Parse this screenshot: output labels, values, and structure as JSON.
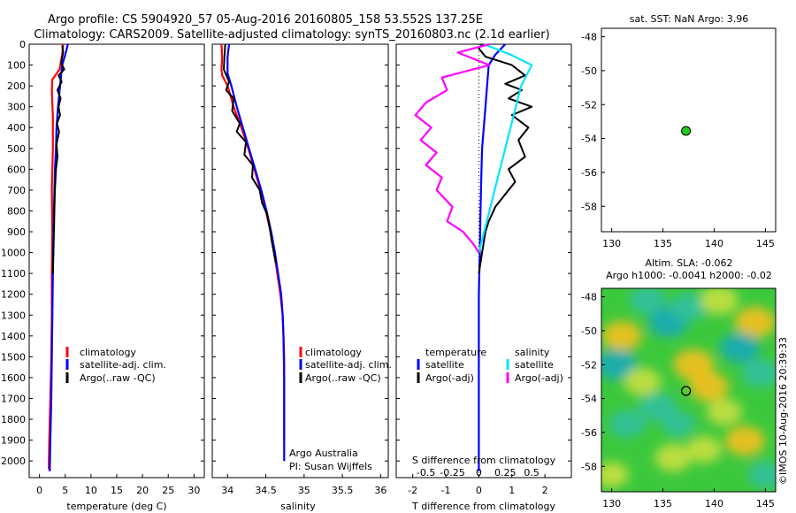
{
  "header": {
    "line1": "Argo profile: CS 5904920_57 05-Aug-2016 20160805_158 53.552S 137.25E",
    "line2": "Climatology: CARS2009. Satellite-adjusted climatology: synTS_20160803.nc (2.1d earlier)"
  },
  "colors": {
    "climatology": "#ff0000",
    "satellite": "#0000ff",
    "argo": "#000000",
    "sal_satellite": "#00e5ff",
    "sal_argo": "#ff00ff",
    "argo_marker": "#22cc22"
  },
  "credit": "©IMOS 10-Aug-2016 20:39:33",
  "chart_data": [
    {
      "type": "line",
      "id": "temperature",
      "xlabel": "temperature (deg C)",
      "ylabel": "",
      "xlim": [
        -2,
        32
      ],
      "ylim": [
        2080,
        0
      ],
      "xticks": [
        0,
        5,
        10,
        15,
        20,
        25,
        30
      ],
      "yticks": [
        0,
        100,
        200,
        300,
        400,
        500,
        600,
        700,
        800,
        900,
        1000,
        1100,
        1200,
        1300,
        1400,
        1500,
        1600,
        1700,
        1800,
        1900,
        2000
      ],
      "legend": [
        "climatology",
        "satellite-adj. clim.",
        "Argo(..raw -QC)"
      ],
      "series": [
        {
          "name": "climatology",
          "color": "#ff0000",
          "x": [
            4.6,
            4.4,
            3.9,
            2.5,
            2.4,
            2.6,
            2.6,
            2.4,
            2.5,
            2.4,
            2.4,
            2.3,
            2.2,
            2.1,
            2.0,
            1.9,
            1.8
          ],
          "y": [
            0,
            50,
            120,
            170,
            220,
            350,
            500,
            700,
            900,
            1100,
            1300,
            1500,
            1600,
            1700,
            1800,
            1900,
            2040
          ]
        },
        {
          "name": "satellite-adj. clim.",
          "color": "#0000ff",
          "x": [
            5.5,
            5.0,
            4.4,
            4.0,
            3.6,
            3.3,
            3.2,
            3.0,
            2.9,
            2.8,
            2.7,
            2.6,
            2.5,
            2.4,
            2.3,
            2.2,
            2.1,
            2.0
          ],
          "y": [
            0,
            50,
            100,
            200,
            300,
            400,
            500,
            600,
            700,
            800,
            900,
            1100,
            1300,
            1500,
            1700,
            1800,
            1900,
            2050
          ]
        },
        {
          "name": "Argo(..raw -QC)",
          "color": "#000000",
          "x": [
            4.4,
            4.6,
            4.2,
            4.8,
            3.7,
            4.3,
            3.5,
            4.1,
            3.7,
            4.0,
            3.4,
            3.8,
            3.3,
            3.5,
            3.2,
            3.0,
            2.9,
            2.8,
            2.7,
            2.6
          ],
          "y": [
            5,
            40,
            90,
            120,
            150,
            180,
            220,
            260,
            300,
            340,
            380,
            420,
            480,
            540,
            600,
            700,
            800,
            900,
            1000,
            1100
          ]
        }
      ]
    },
    {
      "type": "line",
      "id": "salinity",
      "xlabel": "salinity",
      "ylabel": "",
      "xlim": [
        33.8,
        36.1
      ],
      "ylim": [
        2080,
        0
      ],
      "xticks": [
        34,
        34.5,
        35,
        35.5,
        36
      ],
      "legend": [
        "climatology",
        "satellite-adj. clim.",
        "Argo(..raw -QC)"
      ],
      "annotations": [
        "Argo Australia",
        "PI: Susan Wijffels"
      ],
      "series": [
        {
          "name": "climatology",
          "color": "#ff0000",
          "x": [
            33.92,
            33.93,
            33.92,
            33.93,
            34.0,
            34.08,
            34.18,
            34.27,
            34.35,
            34.43,
            34.5,
            34.56,
            34.61,
            34.65,
            34.69,
            34.72,
            34.73,
            34.74,
            34.74,
            34.74
          ],
          "y": [
            0,
            60,
            120,
            150,
            200,
            300,
            400,
            500,
            600,
            700,
            800,
            900,
            1000,
            1100,
            1200,
            1300,
            1400,
            1500,
            1700,
            1900
          ]
        },
        {
          "name": "satellite-adj. clim.",
          "color": "#0000ff",
          "x": [
            34.02,
            34.0,
            34.0,
            34.05,
            34.12,
            34.2,
            34.28,
            34.36,
            34.44,
            34.51,
            34.57,
            34.62,
            34.66,
            34.7,
            34.72,
            34.73,
            34.74,
            34.74
          ],
          "y": [
            0,
            60,
            140,
            200,
            300,
            400,
            500,
            600,
            700,
            800,
            900,
            1000,
            1100,
            1200,
            1300,
            1400,
            1600,
            2000
          ]
        },
        {
          "name": "Argo(..raw -QC)",
          "color": "#000000",
          "x": [
            33.97,
            33.96,
            33.95,
            34.02,
            33.98,
            34.08,
            34.06,
            34.16,
            34.12,
            34.24,
            34.22,
            34.33,
            34.32,
            34.42,
            34.45,
            34.52,
            34.55,
            34.58,
            34.63
          ],
          "y": [
            0,
            60,
            120,
            180,
            220,
            260,
            320,
            380,
            420,
            470,
            530,
            580,
            640,
            700,
            760,
            820,
            880,
            950,
            1050
          ]
        }
      ]
    },
    {
      "type": "line",
      "id": "difference",
      "xlabel": "T difference from climatology",
      "xlabel_top": "S difference from climatology",
      "xlim": [
        -2.5,
        2.8
      ],
      "ylim": [
        2080,
        0
      ],
      "xticks": [
        -2,
        -1,
        0,
        1,
        2
      ],
      "sticks": [
        -0.5,
        -0.25,
        0,
        0.25,
        0.5
      ],
      "legend_temperature": [
        "temperature",
        "satellite",
        "Argo(-adj)"
      ],
      "legend_salinity": [
        "salinity",
        "satellite",
        "Argo(-adj)"
      ],
      "series": [
        {
          "name": "satellite",
          "group": "temperature",
          "color": "#0000ff",
          "x": [
            0.8,
            0.5,
            0.3,
            0.25,
            0.2,
            0.15,
            0.1,
            0.08,
            0.05,
            0.03,
            0.0,
            0.0
          ],
          "y": [
            0,
            50,
            100,
            200,
            300,
            400,
            500,
            600,
            800,
            1000,
            1200,
            2050
          ]
        },
        {
          "name": "Argo(-adj)",
          "group": "temperature",
          "color": "#000000",
          "x": [
            0.1,
            0.0,
            0.2,
            1.0,
            1.4,
            0.8,
            1.3,
            0.9,
            1.6,
            1.0,
            1.5,
            1.2,
            1.4,
            0.9,
            1.1,
            0.8,
            0.5,
            0.3,
            0.2,
            0.1,
            0.0
          ],
          "y": [
            0,
            20,
            60,
            100,
            150,
            190,
            220,
            260,
            300,
            340,
            400,
            460,
            540,
            600,
            660,
            720,
            780,
            850,
            900,
            1000,
            1100
          ]
        },
        {
          "name": "satellite",
          "group": "salinity",
          "color": "#00e5ff",
          "x": [
            0.05,
            0.3,
            0.5,
            0.4,
            0.35,
            0.3,
            0.25,
            0.2,
            0.15,
            0.1,
            0.05,
            0.0
          ],
          "y": [
            0,
            50,
            100,
            200,
            300,
            400,
            500,
            600,
            700,
            800,
            900,
            1000
          ]
        },
        {
          "name": "Argo(-adj)",
          "group": "salinity",
          "color": "#ff00ff",
          "x": [
            0.1,
            -0.2,
            0.1,
            -0.35,
            -0.3,
            -0.5,
            -0.6,
            -0.45,
            -0.55,
            -0.4,
            -0.5,
            -0.35,
            -0.4,
            -0.25,
            -0.3,
            -0.15,
            -0.05,
            0.0
          ],
          "y": [
            0,
            40,
            100,
            160,
            220,
            280,
            340,
            400,
            460,
            520,
            580,
            640,
            700,
            780,
            850,
            900,
            960,
            1000
          ]
        }
      ]
    },
    {
      "type": "scatter",
      "id": "sst-map",
      "title": "sat. SST: NaN Argo: 3.96",
      "xlim": [
        129,
        146
      ],
      "ylim": [
        -59.5,
        -47.5
      ],
      "xticks": [
        130,
        135,
        140,
        145
      ],
      "yticks": [
        -48,
        -50,
        -52,
        -54,
        -56,
        -58
      ],
      "points": [
        {
          "x": 137.25,
          "y": -53.552
        }
      ]
    },
    {
      "type": "heatmap",
      "id": "sla-map",
      "title_line1": "Altim. SLA: -0.062",
      "title_line2": "Argo h1000: -0.0041 h2000: -0.02",
      "xlim": [
        129,
        146
      ],
      "ylim": [
        -59.5,
        -47.5
      ],
      "xticks": [
        130,
        135,
        140,
        145
      ],
      "yticks": [
        -48,
        -50,
        -52,
        -54,
        -56,
        -58
      ],
      "points": [
        {
          "x": 137.25,
          "y": -53.552
        }
      ],
      "blobs": [
        {
          "x": 131.0,
          "y": -50.3,
          "v": 0.8
        },
        {
          "x": 133.5,
          "y": -48.2,
          "v": -0.6
        },
        {
          "x": 135.5,
          "y": -49.5,
          "v": -0.8
        },
        {
          "x": 137.5,
          "y": -48.6,
          "v": -0.7
        },
        {
          "x": 140.5,
          "y": -48.2,
          "v": 0.7
        },
        {
          "x": 144.0,
          "y": -49.5,
          "v": 0.9
        },
        {
          "x": 130.5,
          "y": -52.0,
          "v": -0.9
        },
        {
          "x": 133.0,
          "y": -53.0,
          "v": 0.6
        },
        {
          "x": 138.0,
          "y": -52.0,
          "v": 0.9
        },
        {
          "x": 139.5,
          "y": -53.3,
          "v": 0.8
        },
        {
          "x": 141.0,
          "y": -54.8,
          "v": 0.5
        },
        {
          "x": 144.5,
          "y": -52.5,
          "v": -0.7
        },
        {
          "x": 131.5,
          "y": -55.5,
          "v": -0.6
        },
        {
          "x": 134.5,
          "y": -54.5,
          "v": -0.7
        },
        {
          "x": 136.0,
          "y": -57.5,
          "v": 0.6
        },
        {
          "x": 139.0,
          "y": -57.0,
          "v": 0.5
        },
        {
          "x": 143.0,
          "y": -56.5,
          "v": 0.8
        },
        {
          "x": 145.0,
          "y": -58.5,
          "v": -0.5
        },
        {
          "x": 130.0,
          "y": -58.5,
          "v": 0.4
        },
        {
          "x": 142.5,
          "y": -51.0,
          "v": -0.8
        },
        {
          "x": 136.5,
          "y": -55.5,
          "v": -0.4
        }
      ]
    }
  ]
}
